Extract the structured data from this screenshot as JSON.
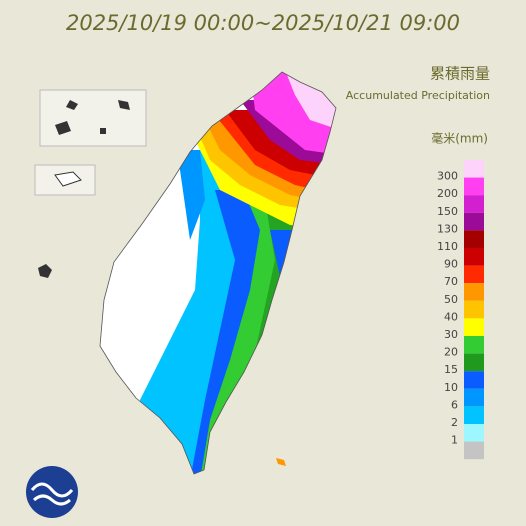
{
  "header": {
    "title": "2025/10/19 00:00~2025/10/21 09:00"
  },
  "legend": {
    "title": "累積雨量",
    "subtitle": "Accumulated Precipitation",
    "unit": "毫米(mm)",
    "labels": [
      300,
      200,
      150,
      130,
      110,
      90,
      70,
      50,
      40,
      30,
      20,
      15,
      10,
      6,
      2,
      1
    ],
    "colors": [
      "#fdd3fb",
      "#ff3ff0",
      "#d21fcf",
      "#9c0b98",
      "#a40000",
      "#cc0000",
      "#ff2a00",
      "#ff9700",
      "#ffc400",
      "#ffff00",
      "#33cc33",
      "#1f9a1f",
      "#0a5cff",
      "#0096ff",
      "#00c3ff",
      "#9ef6ff",
      "#c4c4c4"
    ]
  }
}
